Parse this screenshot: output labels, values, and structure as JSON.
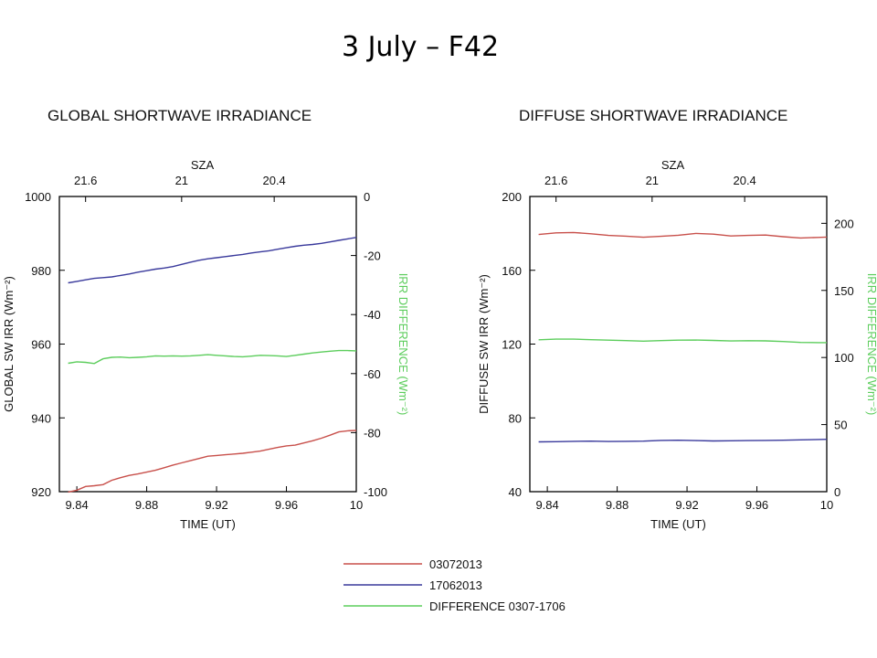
{
  "slide_title": "3 July – F42",
  "colors": {
    "red": "#c8504b",
    "blue": "#3a3a9c",
    "green": "#5ccd5c",
    "axis": "#000000"
  },
  "legend": [
    {
      "label": "03072013",
      "color": "#c8504b"
    },
    {
      "label": "17062013",
      "color": "#3a3a9c"
    },
    {
      "label": "DIFFERENCE 0307-1706",
      "color": "#5ccd5c"
    }
  ],
  "chart_data": [
    {
      "type": "line",
      "title": "GLOBAL SHORTWAVE IRRADIANCE",
      "xlabel": "TIME (UT)",
      "ylabel": "GLOBAL SW IRR (Wm⁻²)",
      "y2label": "IRR DIFFERENCE (Wm⁻²)",
      "toplabel": "SZA",
      "xlim": [
        9.83,
        10.0
      ],
      "ylim": [
        920,
        1000
      ],
      "y2lim": [
        -100,
        0
      ],
      "xticks": [
        9.84,
        9.88,
        9.92,
        9.96,
        10
      ],
      "xticklabels": [
        "9.84",
        "9.88",
        "9.92",
        "9.96",
        "10"
      ],
      "yticks": [
        920,
        940,
        960,
        980,
        1000
      ],
      "yticklabels": [
        "920",
        "940",
        "960",
        "980",
        "1000"
      ],
      "y2ticks": [
        -100,
        -80,
        -60,
        -40,
        -20,
        0
      ],
      "y2ticklabels": [
        "-100",
        "-80",
        "-60",
        "-40",
        "-20",
        "0"
      ],
      "topticks": [
        9.845,
        9.9,
        9.953
      ],
      "topticklabels": [
        "21.6",
        "21",
        "20.4"
      ],
      "series": [
        {
          "name": "03072013",
          "axis": "left",
          "color": "#c8504b",
          "x": [
            9.835,
            9.84,
            9.845,
            9.85,
            9.855,
            9.86,
            9.865,
            9.87,
            9.875,
            9.88,
            9.885,
            9.89,
            9.895,
            9.9,
            9.905,
            9.91,
            9.915,
            9.92,
            9.925,
            9.93,
            9.935,
            9.94,
            9.945,
            9.95,
            9.955,
            9.96,
            9.965,
            9.97,
            9.975,
            9.98,
            9.985,
            9.99,
            9.995,
            10.0
          ],
          "y": [
            919.9,
            920.4,
            921.4,
            921.6,
            921.9,
            923.1,
            923.8,
            924.4,
            924.8,
            925.3,
            925.8,
            926.5,
            927.2,
            927.8,
            928.4,
            929.0,
            929.6,
            929.8,
            930.0,
            930.2,
            930.4,
            930.7,
            931.0,
            931.5,
            932.0,
            932.4,
            932.6,
            933.2,
            933.8,
            934.5,
            935.3,
            936.2,
            936.5,
            936.6
          ]
        },
        {
          "name": "17062013",
          "axis": "left",
          "color": "#3a3a9c",
          "x": [
            9.835,
            9.84,
            9.845,
            9.85,
            9.855,
            9.86,
            9.865,
            9.87,
            9.875,
            9.88,
            9.885,
            9.89,
            9.895,
            9.9,
            9.905,
            9.91,
            9.915,
            9.92,
            9.925,
            9.93,
            9.935,
            9.94,
            9.945,
            9.95,
            9.955,
            9.96,
            9.965,
            9.97,
            9.975,
            9.98,
            9.985,
            9.99,
            9.995,
            10.0
          ],
          "y": [
            976.6,
            977.0,
            977.4,
            977.8,
            978.0,
            978.2,
            978.6,
            979.0,
            979.5,
            979.9,
            980.3,
            980.6,
            981.0,
            981.6,
            982.2,
            982.7,
            983.1,
            983.4,
            983.7,
            984.0,
            984.3,
            984.7,
            985.0,
            985.3,
            985.7,
            986.1,
            986.5,
            986.8,
            987.0,
            987.3,
            987.7,
            988.1,
            988.5,
            988.9
          ]
        },
        {
          "name": "DIFFERENCE 0307-1706",
          "axis": "right",
          "color": "#5ccd5c",
          "x": [
            9.835,
            9.84,
            9.845,
            9.85,
            9.855,
            9.86,
            9.865,
            9.87,
            9.875,
            9.88,
            9.885,
            9.89,
            9.895,
            9.9,
            9.905,
            9.91,
            9.915,
            9.92,
            9.925,
            9.93,
            9.935,
            9.94,
            9.945,
            9.95,
            9.955,
            9.96,
            9.965,
            9.97,
            9.975,
            9.98,
            9.985,
            9.99,
            9.995,
            10.0
          ],
          "y": [
            -56.5,
            -56.0,
            -56.2,
            -56.6,
            -55.0,
            -54.5,
            -54.4,
            -54.6,
            -54.5,
            -54.3,
            -54.0,
            -54.1,
            -54.0,
            -54.1,
            -54.0,
            -53.8,
            -53.6,
            -53.8,
            -54.0,
            -54.2,
            -54.3,
            -54.1,
            -53.8,
            -53.9,
            -54.0,
            -54.2,
            -53.8,
            -53.4,
            -53.0,
            -52.7,
            -52.4,
            -52.2,
            -52.2,
            -52.3
          ]
        }
      ]
    },
    {
      "type": "line",
      "title": "DIFFUSE SHORTWAVE IRRADIANCE",
      "xlabel": "TIME (UT)",
      "ylabel": "DIFFUSE SW IRR (Wm⁻²)",
      "y2label": "IRR DIFFERENCE (Wm⁻²)",
      "toplabel": "SZA",
      "xlim": [
        9.83,
        10.0
      ],
      "ylim": [
        40,
        200
      ],
      "y2lim": [
        0,
        220
      ],
      "xticks": [
        9.84,
        9.88,
        9.92,
        9.96,
        10
      ],
      "xticklabels": [
        "9.84",
        "9.88",
        "9.92",
        "9.96",
        "10"
      ],
      "yticks": [
        40,
        80,
        120,
        160,
        200
      ],
      "yticklabels": [
        "40",
        "80",
        "120",
        "160",
        "200"
      ],
      "y2ticks": [
        0,
        50,
        100,
        150,
        200
      ],
      "y2ticklabels": [
        "0",
        "50",
        "100",
        "150",
        "200"
      ],
      "topticks": [
        9.845,
        9.9,
        9.953
      ],
      "topticklabels": [
        "21.6",
        "21",
        "20.4"
      ],
      "series": [
        {
          "name": "03072013",
          "axis": "left",
          "color": "#c8504b",
          "x": [
            9.835,
            9.845,
            9.855,
            9.865,
            9.875,
            9.885,
            9.895,
            9.905,
            9.915,
            9.925,
            9.935,
            9.945,
            9.955,
            9.965,
            9.975,
            9.985,
            9.995,
            10.0
          ],
          "y": [
            179.4,
            180.3,
            180.5,
            179.8,
            178.9,
            178.5,
            177.9,
            178.4,
            179.0,
            180.0,
            179.6,
            178.6,
            178.9,
            179.1,
            178.2,
            177.5,
            177.8,
            178.0
          ]
        },
        {
          "name": "17062013",
          "axis": "left",
          "color": "#3a3a9c",
          "x": [
            9.835,
            9.845,
            9.855,
            9.865,
            9.875,
            9.885,
            9.895,
            9.905,
            9.915,
            9.925,
            9.935,
            9.945,
            9.955,
            9.965,
            9.975,
            9.985,
            9.995,
            10.0
          ],
          "y": [
            67.0,
            67.1,
            67.3,
            67.4,
            67.2,
            67.3,
            67.4,
            67.8,
            67.9,
            67.7,
            67.5,
            67.6,
            67.7,
            67.8,
            67.9,
            68.1,
            68.3,
            68.4
          ]
        },
        {
          "name": "DIFFERENCE 0307-1706",
          "axis": "right",
          "color": "#5ccd5c",
          "x": [
            9.835,
            9.845,
            9.855,
            9.865,
            9.875,
            9.885,
            9.895,
            9.905,
            9.915,
            9.925,
            9.935,
            9.945,
            9.955,
            9.965,
            9.975,
            9.985,
            9.995,
            10.0
          ],
          "y": [
            113.2,
            113.7,
            113.7,
            113.3,
            112.9,
            112.6,
            112.2,
            112.6,
            112.9,
            113.0,
            112.7,
            112.3,
            112.5,
            112.4,
            111.9,
            111.2,
            111.1,
            111.1
          ]
        }
      ]
    }
  ]
}
